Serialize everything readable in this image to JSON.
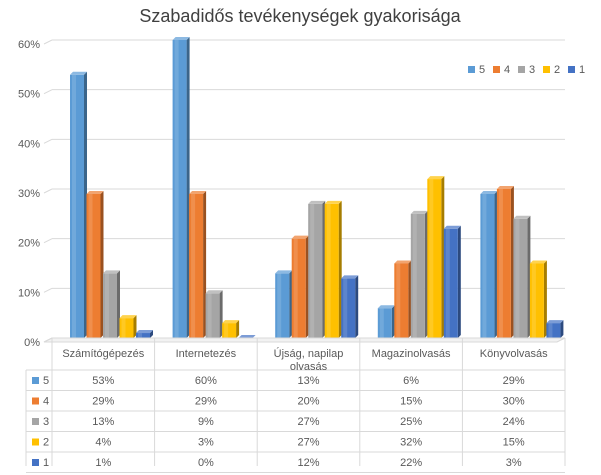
{
  "chart_data": {
    "type": "bar",
    "variant": "3d-clustered-column-with-data-table",
    "title": "Szabadidős tevékenységek gyakorisága",
    "categories": [
      "Számítógépezés",
      "Internetezés",
      "Újság, napilap olvasás",
      "Magazinolvasás",
      "Könyvolvasás"
    ],
    "category_label_lines": [
      [
        "Számítógépezés"
      ],
      [
        "Internetezés"
      ],
      [
        "Újság, napilap",
        "olvasás"
      ],
      [
        "Magazinolvasás"
      ],
      [
        "Könyvolvasás"
      ]
    ],
    "series": [
      {
        "name": "5",
        "color": "#5B9BD5",
        "values": [
          53,
          60,
          13,
          6,
          29
        ]
      },
      {
        "name": "4",
        "color": "#ED7D31",
        "values": [
          29,
          29,
          20,
          15,
          30
        ]
      },
      {
        "name": "3",
        "color": "#A5A5A5",
        "values": [
          13,
          9,
          27,
          25,
          24
        ]
      },
      {
        "name": "2",
        "color": "#FFC000",
        "values": [
          4,
          3,
          27,
          32,
          15
        ]
      },
      {
        "name": "1",
        "color": "#4472C4",
        "values": [
          1,
          0,
          12,
          22,
          3
        ]
      }
    ],
    "ylim": [
      0,
      60
    ],
    "ytick_values": [
      0,
      10,
      20,
      30,
      40,
      50,
      60
    ],
    "ytick_labels": [
      "0%",
      "10%",
      "20%",
      "30%",
      "40%",
      "50%",
      "60%"
    ],
    "value_suffix": "%",
    "grid": true,
    "legend_position": "top-right",
    "xlabel": "",
    "ylabel": ""
  }
}
